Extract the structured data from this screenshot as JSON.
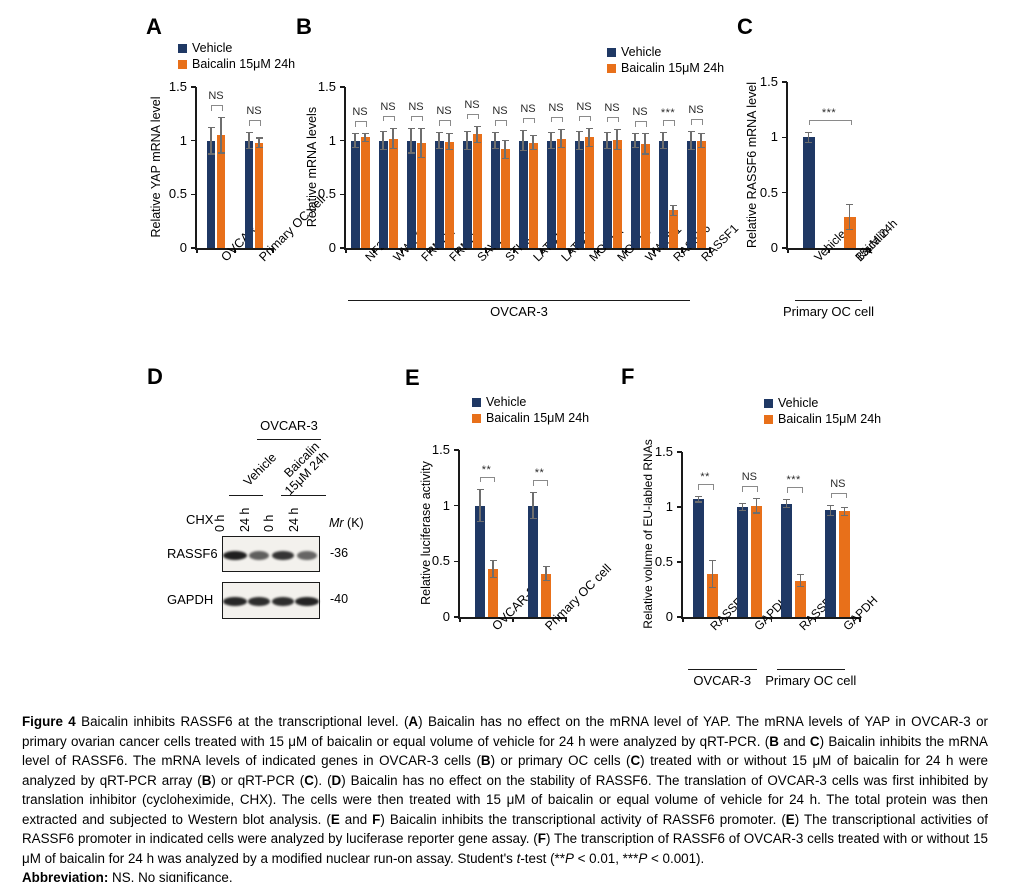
{
  "colors": {
    "vehicle": "#1f3864",
    "baicalin": "#e8701a",
    "axis": "#1a1a1a",
    "error_bar": "#6e6e6e"
  },
  "legend": {
    "items": [
      {
        "label": "Vehicle",
        "color": "#1f3864"
      },
      {
        "label": "Baicalin 15μM 24h",
        "color": "#e8701a"
      }
    ]
  },
  "figure": {
    "panels": {
      "A": {
        "label": "A",
        "chart_data": {
          "type": "bar",
          "ylabel": "Relative YAP mRNA level",
          "ylim": [
            0,
            1.5
          ],
          "yticks": [
            0,
            0.5,
            1,
            1.5
          ],
          "categories": [
            "OVCAR",
            "Primary OC cell"
          ],
          "series": [
            {
              "name": "Vehicle",
              "color": "#1f3864",
              "values": [
                1.0,
                1.0
              ],
              "errors": [
                0.13,
                0.08
              ]
            },
            {
              "name": "Baicalin 15μM 24h",
              "color": "#e8701a",
              "values": [
                1.05,
                0.98
              ],
              "errors": [
                0.17,
                0.05
              ]
            }
          ],
          "significance": [
            "NS",
            "NS"
          ]
        }
      },
      "B": {
        "label": "B",
        "chart_data": {
          "type": "bar",
          "ylabel": "Relative mRNA levels",
          "ylim": [
            0,
            1.5
          ],
          "yticks": [
            0,
            0.5,
            1,
            1.5
          ],
          "categories": [
            "NF2",
            "WWC1",
            "FRMD1",
            "FRMD6",
            "SAV1",
            "STK3",
            "LATS1",
            "LATS2",
            "MOB1A",
            "MOB1B",
            "WWTR1",
            "RASSF6",
            "RASSF1"
          ],
          "series": [
            {
              "name": "Vehicle",
              "color": "#1f3864",
              "values": [
                1.0,
                1.0,
                1.0,
                1.0,
                1.0,
                1.0,
                1.0,
                1.0,
                1.0,
                1.0,
                1.0,
                1.0,
                1.0
              ],
              "errors": [
                0.07,
                0.09,
                0.12,
                0.08,
                0.09,
                0.08,
                0.1,
                0.08,
                0.09,
                0.08,
                0.07,
                0.08,
                0.09
              ]
            },
            {
              "name": "Baicalin 15μM 24h",
              "color": "#e8701a",
              "values": [
                1.03,
                1.02,
                0.98,
                0.99,
                1.06,
                0.92,
                0.98,
                1.02,
                1.03,
                1.01,
                0.97,
                0.35,
                1.0
              ],
              "errors": [
                0.04,
                0.1,
                0.14,
                0.08,
                0.08,
                0.09,
                0.07,
                0.09,
                0.09,
                0.1,
                0.1,
                0.05,
                0.07
              ]
            }
          ],
          "significance": [
            "NS",
            "NS",
            "NS",
            "NS",
            "NS",
            "NS",
            "NS",
            "NS",
            "NS",
            "NS",
            "NS",
            "***",
            "NS"
          ],
          "group_labels": [
            {
              "label": "OVCAR-3",
              "span": [
                0,
                12
              ]
            }
          ]
        }
      },
      "C": {
        "label": "C",
        "chart_data": {
          "type": "bar",
          "ylabel": "Relative RASSF6 mRNA level",
          "ylim": [
            0,
            1.5
          ],
          "yticks": [
            0,
            0.5,
            1,
            1.5
          ],
          "categories": [
            "Vehicle",
            "Baicalin 15μM 24h"
          ],
          "category_lines": [
            [
              "Vehicle"
            ],
            [
              "Baicalin",
              "15μM 24h"
            ]
          ],
          "values": [
            1.0,
            0.28
          ],
          "errors": [
            0.05,
            0.12
          ],
          "bar_colors": [
            "#1f3864",
            "#e8701a"
          ],
          "significance_spans": [
            {
              "span": [
                0,
                1
              ],
              "label": "***"
            }
          ],
          "group_labels": [
            {
              "label": "Primary OC cell",
              "span": [
                0,
                1
              ]
            }
          ]
        }
      },
      "D": {
        "label": "D",
        "blot": {
          "cell_line": "OVCAR-3",
          "conditions": [
            {
              "lines": [
                "Vehicle"
              ]
            },
            {
              "lines": [
                "Baicalin",
                "15μM 24h"
              ]
            }
          ],
          "treatment": "CHX",
          "lane_labels": [
            "0 h",
            "24 h",
            "0 h",
            "24 h"
          ],
          "mw_header_italic": "Mr",
          "mw_header_rest": " (K)",
          "rows": [
            {
              "protein": "RASSF6",
              "mw": "-36",
              "bands": [
                0.95,
                0.5,
                0.8,
                0.45
              ]
            },
            {
              "protein": "GAPDH",
              "mw": "-40",
              "bands": [
                0.9,
                0.85,
                0.85,
                0.92
              ]
            }
          ]
        }
      },
      "E": {
        "label": "E",
        "chart_data": {
          "type": "bar",
          "ylabel": "Relative luciferase activity",
          "ylim": [
            0,
            1.5
          ],
          "yticks": [
            0,
            0.5,
            1,
            1.5
          ],
          "categories": [
            "OVCAR-3",
            "Primary OC cell"
          ],
          "series": [
            {
              "name": "Vehicle",
              "color": "#1f3864",
              "values": [
                1.0,
                1.0
              ],
              "errors": [
                0.15,
                0.12
              ]
            },
            {
              "name": "Baicalin 15μM 24h",
              "color": "#e8701a",
              "values": [
                0.43,
                0.39
              ],
              "errors": [
                0.08,
                0.07
              ]
            }
          ],
          "significance": [
            "**",
            "**"
          ]
        }
      },
      "F": {
        "label": "F",
        "chart_data": {
          "type": "bar",
          "ylabel": "Relative volume of EU-labled RNAs",
          "ylim": [
            0,
            1.5
          ],
          "yticks": [
            0,
            0.5,
            1,
            1.5
          ],
          "categories": [
            "RASSF6",
            "GAPDH",
            "RASSF6",
            "GAPDH"
          ],
          "series": [
            {
              "name": "Vehicle",
              "color": "#1f3864",
              "values": [
                1.07,
                1.0,
                1.03,
                0.97
              ],
              "errors": [
                0.03,
                0.04,
                0.04,
                0.05
              ]
            },
            {
              "name": "Baicalin 15μM 24h",
              "color": "#e8701a",
              "values": [
                0.39,
                1.01,
                0.33,
                0.96
              ],
              "errors": [
                0.13,
                0.07,
                0.06,
                0.04
              ]
            }
          ],
          "significance": [
            "**",
            "NS",
            "***",
            "NS"
          ],
          "group_labels": [
            {
              "label": "OVCAR-3",
              "span": [
                0,
                1
              ]
            },
            {
              "label": "Primary OC cell",
              "span": [
                2,
                3
              ]
            }
          ]
        }
      }
    }
  },
  "caption": {
    "paragraphs": [
      {
        "segments": [
          {
            "text": "Figure 4 ",
            "bold": true
          },
          {
            "text": "Baicalin inhibits RASSF6 at the transcriptional level. ("
          },
          {
            "text": "A",
            "bold": true
          },
          {
            "text": ") Baicalin has no effect on the mRNA level of YAP. The mRNA levels of YAP in OVCAR-3 or primary ovarian cancer cells treated with 15 μM of baicalin or equal volume of vehicle for 24 h were analyzed by qRT-PCR. ("
          },
          {
            "text": "B",
            "bold": true
          },
          {
            "text": " and "
          },
          {
            "text": "C",
            "bold": true
          },
          {
            "text": ") Baicalin inhibits the mRNA level of RASSF6. The mRNA levels of indicated genes in OVCAR-3 cells ("
          },
          {
            "text": "B",
            "bold": true
          },
          {
            "text": ") or primary OC cells ("
          },
          {
            "text": "C",
            "bold": true
          },
          {
            "text": ") treated with or without 15 μM of baicalin for 24 h were analyzed by qRT-PCR array ("
          },
          {
            "text": "B",
            "bold": true
          },
          {
            "text": ") or qRT-PCR ("
          },
          {
            "text": "C",
            "bold": true
          },
          {
            "text": "). ("
          },
          {
            "text": "D",
            "bold": true
          },
          {
            "text": ") Baicalin has no effect on the stability of RASSF6. The translation of OVCAR-3 cells was first inhibited by translation inhibitor (cycloheximide, CHX). The cells were then treated with 15 μM of baicalin or equal volume of vehicle for 24 h. The total protein was then extracted and subjected to Western blot analysis. ("
          },
          {
            "text": "E",
            "bold": true
          },
          {
            "text": " and "
          },
          {
            "text": "F",
            "bold": true
          },
          {
            "text": ") Baicalin inhibits the transcriptional activity of RASSF6 promoter. ("
          },
          {
            "text": "E",
            "bold": true
          },
          {
            "text": ") The transcriptional activities of RASSF6 promoter in indicated cells were analyzed by luciferase reporter gene assay. ("
          },
          {
            "text": "F",
            "bold": true
          },
          {
            "text": ") The transcription of RASSF6 of OVCAR-3 cells treated with or without 15 μM of baicalin for 24 h was analyzed by a modified nuclear run-on assay. Student's "
          },
          {
            "text": "t",
            "italic": true
          },
          {
            "text": "-test (**"
          },
          {
            "text": "P",
            "italic": true
          },
          {
            "text": " < 0.01, ***"
          },
          {
            "text": "P",
            "italic": true
          },
          {
            "text": " < 0.001)."
          }
        ]
      },
      {
        "segments": [
          {
            "text": "Abbreviation: ",
            "bold": true
          },
          {
            "text": "NS, No significance."
          }
        ]
      }
    ]
  }
}
